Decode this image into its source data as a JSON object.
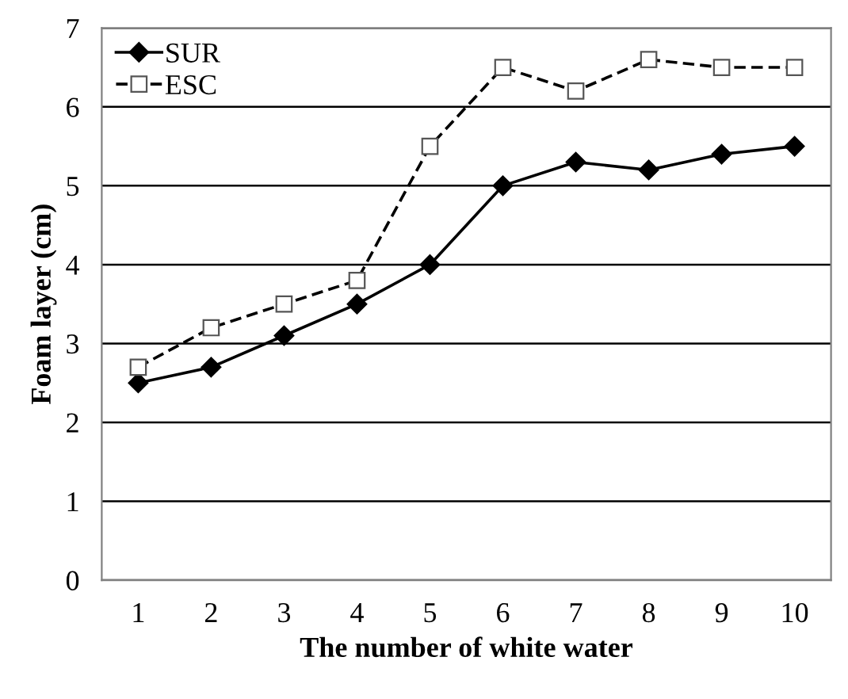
{
  "chart_data": {
    "type": "line",
    "xlabel": "The number of white water",
    "ylabel": "Foam layer (cm)",
    "categories": [
      "1",
      "2",
      "3",
      "4",
      "5",
      "6",
      "7",
      "8",
      "9",
      "10"
    ],
    "series": [
      {
        "name": "SUR",
        "color": "#000000",
        "marker": "diamond",
        "line_style": "solid",
        "values": [
          2.5,
          2.7,
          3.1,
          3.5,
          4.0,
          5.0,
          5.3,
          5.2,
          5.4,
          5.5
        ]
      },
      {
        "name": "ESC",
        "color": "#000000",
        "marker": "square",
        "line_style": "dashed",
        "values": [
          2.7,
          3.2,
          3.5,
          3.8,
          5.5,
          6.5,
          6.2,
          6.6,
          6.5,
          6.5
        ]
      }
    ],
    "ylim": [
      0,
      7
    ],
    "yticks": [
      0,
      1,
      2,
      3,
      4,
      5,
      6,
      7
    ],
    "grid": "y",
    "legend": "top left"
  }
}
